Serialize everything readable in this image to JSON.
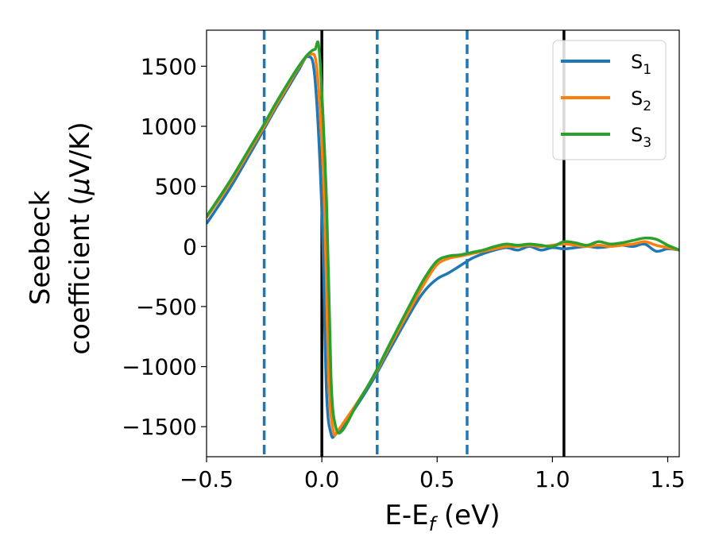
{
  "chart_data": {
    "type": "line",
    "xlabel": {
      "main": "E-E",
      "sub": "f",
      "unit": " (eV)"
    },
    "ylabel": {
      "line1": "Seebeck",
      "line2_main": "coefficient  (",
      "line2_mu": "μ",
      "line2_rest": "V/K)"
    },
    "xlim": [
      -0.5,
      1.55
    ],
    "ylim": [
      -1750,
      1800
    ],
    "xticks": [
      -0.5,
      0.0,
      0.5,
      1.0,
      1.5
    ],
    "xtick_labels": [
      "−0.5",
      "0.0",
      "0.5",
      "1.0",
      "1.5"
    ],
    "yticks": [
      -1500,
      -1000,
      -500,
      0,
      500,
      1000,
      1500
    ],
    "ytick_labels": [
      "−1500",
      "−1000",
      "−500",
      "0",
      "500",
      "1000",
      "1500"
    ],
    "grid": false,
    "legend_position": "top-right",
    "vertical_lines": [
      {
        "x": -0.25,
        "style": "dashed",
        "color": "#1f77b4"
      },
      {
        "x": 0.0,
        "style": "solid",
        "color": "#000000"
      },
      {
        "x": 0.24,
        "style": "dashed",
        "color": "#1f77b4"
      },
      {
        "x": 0.63,
        "style": "dashed",
        "color": "#1f77b4"
      },
      {
        "x": 1.05,
        "style": "solid",
        "color": "#000000"
      }
    ],
    "series": [
      {
        "name": "S",
        "sub": "1",
        "color": "#1f77b4",
        "x": [
          -0.5,
          -0.4,
          -0.3,
          -0.25,
          -0.2,
          -0.15,
          -0.1,
          -0.06,
          -0.03,
          0.0,
          0.02,
          0.04,
          0.06,
          0.1,
          0.15,
          0.2,
          0.24,
          0.3,
          0.4,
          0.45,
          0.5,
          0.55,
          0.6,
          0.65,
          0.7,
          0.75,
          0.8,
          0.85,
          0.9,
          0.95,
          1.0,
          1.05,
          1.1,
          1.15,
          1.2,
          1.25,
          1.3,
          1.35,
          1.4,
          1.45,
          1.5,
          1.55
        ],
        "y": [
          190,
          480,
          810,
          980,
          1150,
          1310,
          1470,
          1580,
          1400,
          300,
          -1200,
          -1560,
          -1560,
          -1470,
          -1330,
          -1180,
          -1050,
          -840,
          -500,
          -360,
          -270,
          -220,
          -160,
          -100,
          -60,
          -30,
          -10,
          -30,
          0,
          -30,
          -10,
          -20,
          -10,
          0,
          -10,
          0,
          10,
          0,
          20,
          -40,
          -20,
          -30
        ]
      },
      {
        "name": "S",
        "sub": "2",
        "color": "#ff7f0e",
        "x": [
          -0.5,
          -0.4,
          -0.3,
          -0.25,
          -0.2,
          -0.15,
          -0.1,
          -0.05,
          -0.02,
          0.01,
          0.03,
          0.05,
          0.07,
          0.1,
          0.15,
          0.2,
          0.24,
          0.3,
          0.4,
          0.45,
          0.5,
          0.55,
          0.6,
          0.65,
          0.7,
          0.75,
          0.8,
          0.85,
          0.9,
          0.95,
          1.0,
          1.05,
          1.1,
          1.15,
          1.2,
          1.25,
          1.3,
          1.35,
          1.4,
          1.45,
          1.5,
          1.55
        ],
        "y": [
          240,
          520,
          840,
          1000,
          1170,
          1330,
          1490,
          1600,
          1450,
          400,
          -1100,
          -1540,
          -1530,
          -1450,
          -1310,
          -1160,
          -1030,
          -810,
          -460,
          -290,
          -150,
          -100,
          -80,
          -60,
          -40,
          -20,
          0,
          0,
          10,
          0,
          10,
          20,
          10,
          0,
          10,
          0,
          10,
          20,
          40,
          10,
          -10,
          -30
        ]
      },
      {
        "name": "S",
        "sub": "3",
        "color": "#2ca02c",
        "x": [
          -0.5,
          -0.4,
          -0.3,
          -0.25,
          -0.2,
          -0.15,
          -0.1,
          -0.06,
          -0.03,
          -0.01,
          0.02,
          0.04,
          0.06,
          0.09,
          0.15,
          0.2,
          0.24,
          0.3,
          0.4,
          0.45,
          0.5,
          0.55,
          0.6,
          0.65,
          0.7,
          0.75,
          0.8,
          0.85,
          0.9,
          0.95,
          1.0,
          1.05,
          1.1,
          1.15,
          1.2,
          1.25,
          1.3,
          1.35,
          1.4,
          1.45,
          1.5,
          1.55
        ],
        "y": [
          250,
          540,
          860,
          1020,
          1190,
          1350,
          1500,
          1600,
          1640,
          1600,
          400,
          -1100,
          -1500,
          -1530,
          -1320,
          -1160,
          -1020,
          -790,
          -420,
          -250,
          -120,
          -80,
          -70,
          -50,
          -30,
          0,
          20,
          10,
          20,
          10,
          0,
          40,
          30,
          10,
          40,
          20,
          30,
          50,
          70,
          60,
          10,
          -30
        ]
      }
    ]
  }
}
